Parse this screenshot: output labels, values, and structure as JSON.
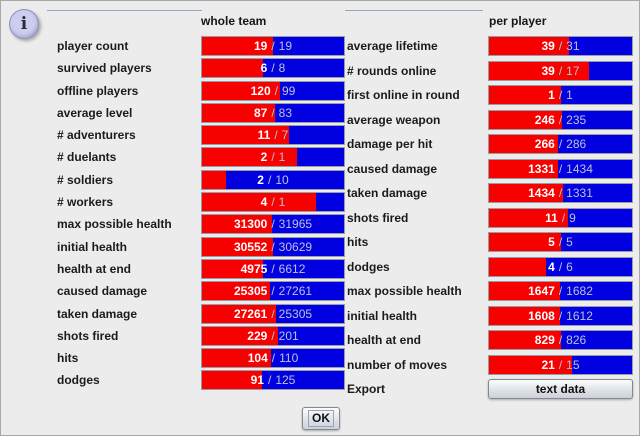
{
  "info_icon": {
    "glyph": "i"
  },
  "value_separator": "/",
  "colors": {
    "background": "#ececec",
    "red_bar": "#f60000",
    "blue_bar": "#0000e0",
    "bar_value_primary": "#ffffff",
    "bar_value_secondary": "#bcc3d6",
    "rule_line": "#8fa6c2"
  },
  "columns": {
    "whole_team": {
      "header": "whole team",
      "rows": [
        {
          "label": "player count",
          "values": [
            19,
            19
          ]
        },
        {
          "label": "survived players",
          "values": [
            6,
            8
          ]
        },
        {
          "label": "offline players",
          "values": [
            120,
            99
          ]
        },
        {
          "label": "average level",
          "values": [
            87,
            83
          ]
        },
        {
          "label": "# adventurers",
          "values": [
            11,
            7
          ]
        },
        {
          "label": "# duelants",
          "values": [
            2,
            1
          ]
        },
        {
          "label": "# soldiers",
          "values": [
            2,
            10
          ]
        },
        {
          "label": "# workers",
          "values": [
            4,
            1
          ]
        },
        {
          "label": "max possible health",
          "values": [
            31300,
            31965
          ]
        },
        {
          "label": "initial health",
          "values": [
            30552,
            30629
          ]
        },
        {
          "label": "health at end",
          "values": [
            4975,
            6612
          ]
        },
        {
          "label": "caused damage",
          "values": [
            25305,
            27261
          ]
        },
        {
          "label": "taken damage",
          "values": [
            27261,
            25305
          ]
        },
        {
          "label": "shots fired",
          "values": [
            229,
            201
          ]
        },
        {
          "label": "hits",
          "values": [
            104,
            110
          ]
        },
        {
          "label": "dodges",
          "values": [
            91,
            125
          ]
        }
      ]
    },
    "per_player": {
      "header": "per player",
      "rows": [
        {
          "label": "average lifetime",
          "values": [
            39,
            31
          ]
        },
        {
          "label": "# rounds online",
          "values": [
            39,
            17
          ]
        },
        {
          "label": "first online in round",
          "values": [
            1,
            1
          ]
        },
        {
          "label": "average weapon",
          "values": [
            246,
            235
          ]
        },
        {
          "label": "damage per hit",
          "values": [
            266,
            286
          ]
        },
        {
          "label": "caused damage",
          "values": [
            1331,
            1434
          ]
        },
        {
          "label": "taken damage",
          "values": [
            1434,
            1331
          ]
        },
        {
          "label": "shots fired",
          "values": [
            11,
            9
          ]
        },
        {
          "label": "hits",
          "values": [
            5,
            5
          ]
        },
        {
          "label": "dodges",
          "values": [
            4,
            6
          ]
        },
        {
          "label": "max possible health",
          "values": [
            1647,
            1682
          ]
        },
        {
          "label": "initial health",
          "values": [
            1608,
            1612
          ]
        },
        {
          "label": "health at end",
          "values": [
            829,
            826
          ]
        },
        {
          "label": "number of moves",
          "values": [
            21,
            15
          ]
        },
        {
          "label": "Export",
          "button": "text data"
        }
      ]
    }
  },
  "ok_button": {
    "label": "OK"
  }
}
